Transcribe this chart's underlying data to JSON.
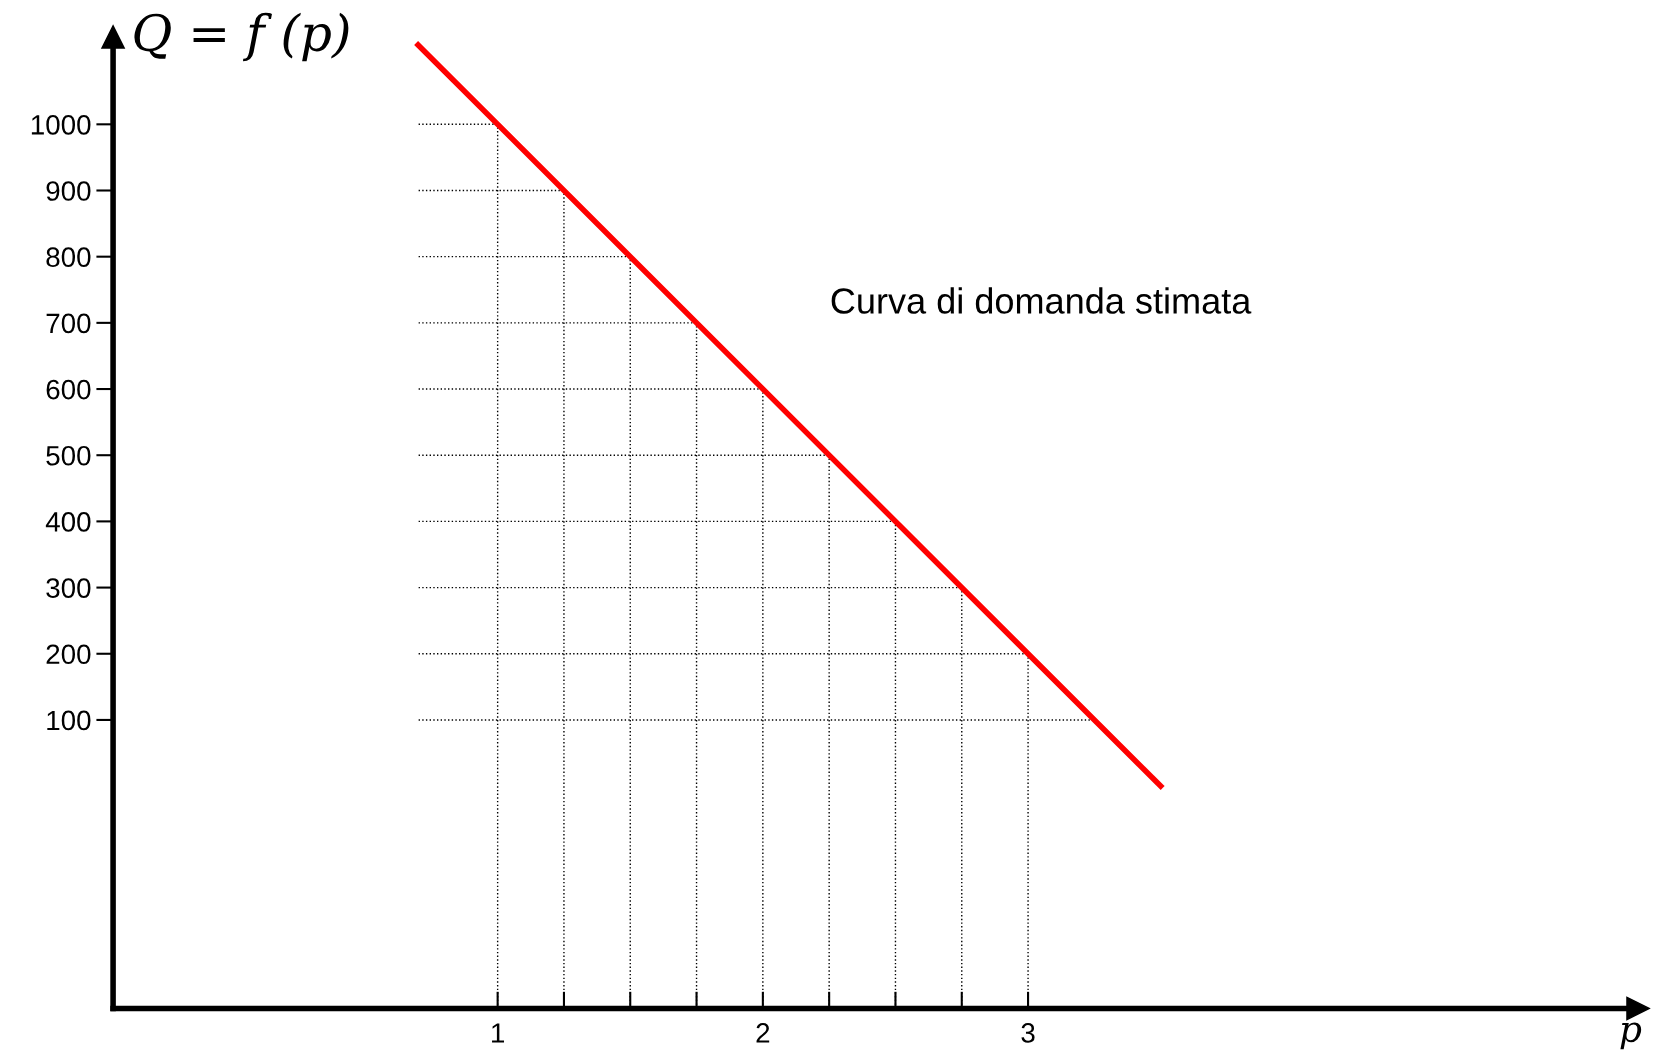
{
  "chart_data": {
    "type": "line",
    "xlabel": "p",
    "ylabel": "Q = f (p)",
    "annotations": [
      "Curva di domanda stimata"
    ],
    "series": [
      {
        "color": "#ff0000",
        "x": [
          0.7,
          3.5
        ],
        "values": [
          1120,
          0
        ]
      }
    ],
    "xlim": [
      -0.45,
      5.3
    ],
    "ylim": [
      -336,
      1132
    ],
    "xticks": [
      1,
      {
        "value": 1.25,
        "label": null
      },
      {
        "value": 1.5,
        "label": null
      },
      {
        "value": 1.75,
        "label": null
      },
      2,
      {
        "value": 2.25,
        "label": null
      },
      {
        "value": 2.5,
        "label": null
      },
      {
        "value": 2.75,
        "label": null
      },
      3
    ],
    "yticks": [
      100,
      200,
      300,
      400,
      500,
      600,
      700,
      800,
      900,
      1000
    ],
    "grid": true,
    "marker": "none",
    "line_style": "solid"
  }
}
